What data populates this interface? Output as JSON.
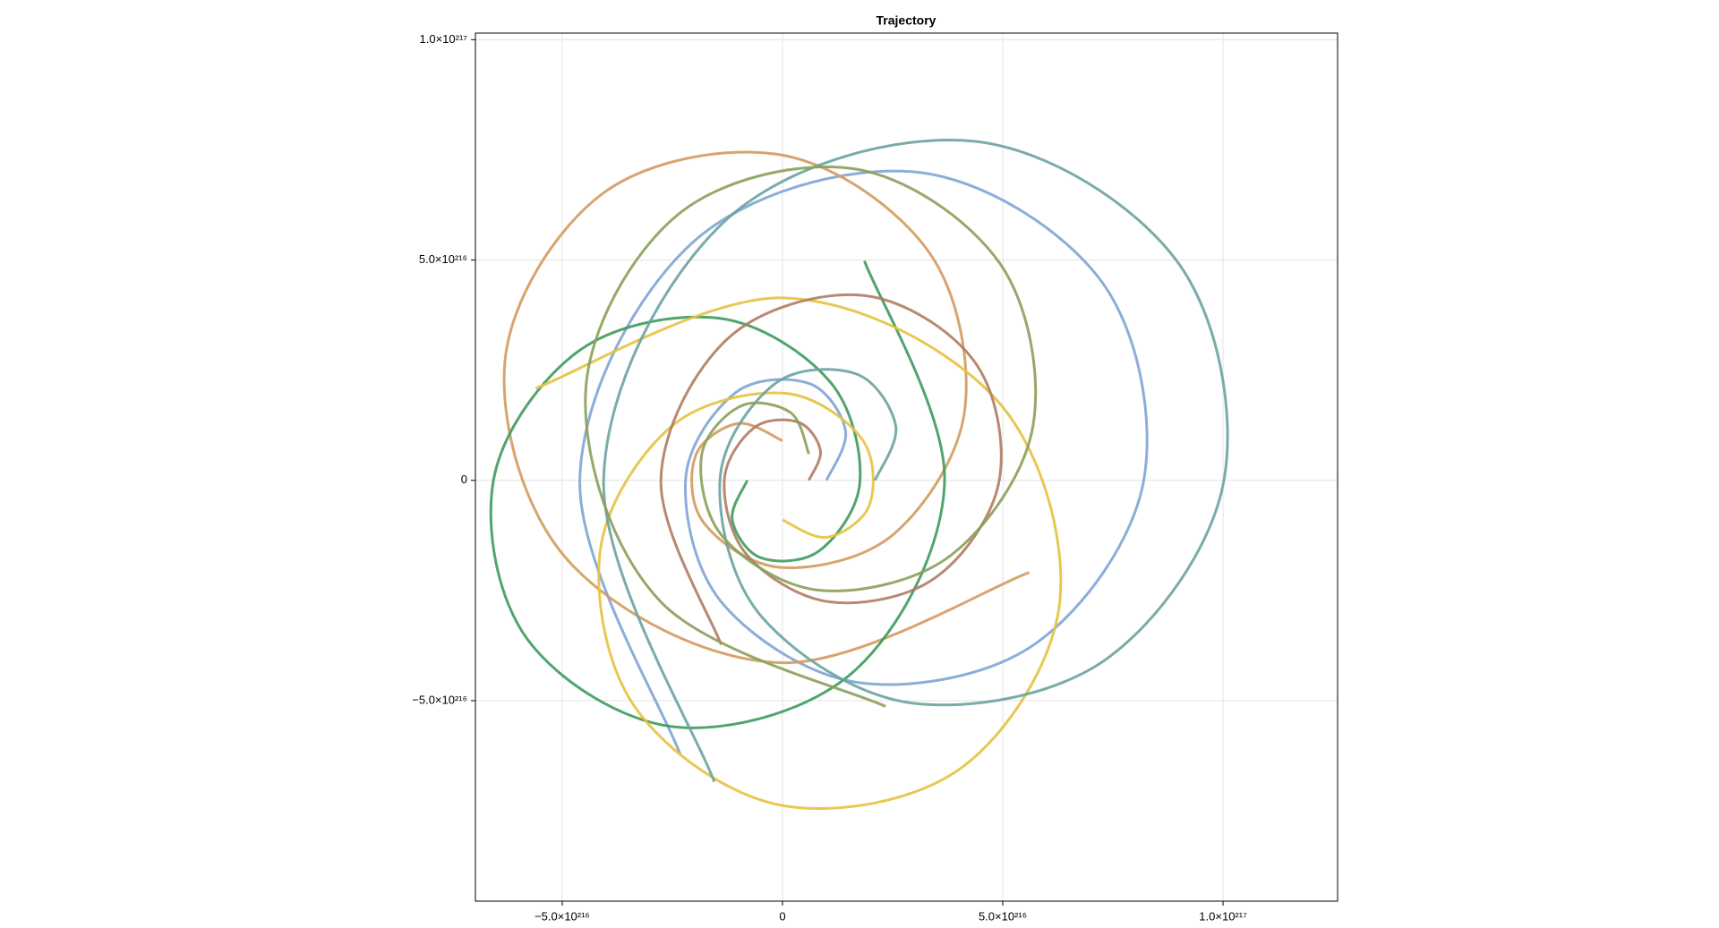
{
  "chart_data": {
    "type": "line",
    "title": "Trajectory",
    "xlim": [
      -6.97e+216,
      1.26e+217
    ],
    "ylim": [
      -9.55e+216,
      1.015e+217
    ],
    "xticks": [
      {
        "value": -5e+216,
        "label": "−5.0×10²¹⁶"
      },
      0,
      {
        "value": 5e+216,
        "label": "5.0×10²¹⁶"
      },
      {
        "value": 1e+217,
        "label": "1.0×10²¹⁷"
      }
    ],
    "yticks": [
      {
        "value": -5e+216,
        "label": "−5.0×10²¹⁶"
      },
      0,
      {
        "value": 5e+216,
        "label": "5.0×10²¹⁶"
      },
      {
        "value": 1e+217,
        "label": "1.0×10²¹⁷"
      }
    ],
    "grid": true,
    "series": [
      {
        "color": "#7fa4d6",
        "x": [
          1e+216,
          1.43e+216,
          6e+215,
          -1.08e+216,
          -2.2e+216,
          -1.33e+216,
          1.8e+216,
          5.78e+216,
          8.2e+216,
          7.23e+216,
          3e+216,
          -2.07e+216,
          -4.6e+216,
          -2.32e+216
        ],
        "values": [
          0,
          1.13e+216,
          2.2e+216,
          1.98e+216,
          0,
          -2.83e+216,
          -4.6e+216,
          -3.68e+216,
          0,
          4.53e+216,
          7e+216,
          5.37e+216,
          0,
          -6.22e+216
        ]
      },
      {
        "color": "#d49a5e",
        "x": [
          0,
          -1.02e+216,
          -1.98e+216,
          -1.78e+216,
          0,
          2.55e+216,
          4.14e+216,
          3.31e+216,
          0,
          -4.08e+216,
          -6.3e+216,
          -4.83e+216,
          0,
          5.6e+216
        ],
        "values": [
          9e+215,
          1.29e+216,
          5.4e+215,
          -9.7e+215,
          -1.98e+216,
          -1.2e+216,
          1.62e+216,
          5.2e+216,
          7.38e+216,
          6.51e+216,
          2.7e+216,
          -1.86e+216,
          -4.14e+216,
          -2.09e+216
        ]
      },
      {
        "color": "#3e9a5e",
        "x": [
          -8e+215,
          -1.14e+216,
          -4.8e+215,
          8.6e+215,
          1.76e+216,
          1.06e+216,
          -1.44e+216,
          -4.62e+216,
          -6.56e+216,
          -5.78e+216,
          -2.4e+216,
          1.66e+216,
          3.68e+216,
          1.86e+216
        ],
        "values": [
          0,
          -9e+215,
          -1.76e+216,
          -1.58e+216,
          0,
          2.26e+216,
          3.68e+216,
          2.94e+216,
          0,
          -3.62e+216,
          -5.6e+216,
          -4.3e+216,
          0,
          4.98e+216
        ]
      },
      {
        "color": "#e5c23f",
        "x": [
          0,
          1.02e+216,
          1.98e+216,
          1.78e+216,
          0,
          -2.55e+216,
          -4.14e+216,
          -3.31e+216,
          0,
          4.08e+216,
          6.3e+216,
          4.83e+216,
          0,
          -5.6e+216
        ],
        "values": [
          -9e+215,
          -1.29e+216,
          -5.4e+215,
          9.7e+215,
          1.98e+216,
          1.2e+216,
          -1.62e+216,
          -5.2e+216,
          -7.38e+216,
          -6.51e+216,
          -2.7e+216,
          1.86e+216,
          4.14e+216,
          2.09e+216
        ]
      },
      {
        "color": "#b07b62",
        "x": [
          6e+215,
          8.6e+215,
          3.6e+215,
          -6.5e+215,
          -1.32e+216,
          -8e+215,
          1.08e+216,
          3.47e+216,
          4.92e+216,
          4.34e+216,
          1.8e+216,
          -1.24e+216,
          -2.76e+216,
          -1.39e+216
        ],
        "values": [
          0,
          6.8e+215,
          1.32e+216,
          1.19e+216,
          0,
          -1.7e+216,
          -2.76e+216,
          -2.21e+216,
          0,
          2.72e+216,
          4.2e+216,
          3.22e+216,
          0,
          -3.73e+216
        ]
      },
      {
        "color": "#6aa3a0",
        "x": [
          2.1e+216,
          2.57e+216,
          1.66e+216,
          -1.9e+215,
          -1.42e+216,
          -4.6e+215,
          2.98e+216,
          7.36e+216,
          1.002e+217,
          8.95e+216,
          4.3e+216,
          -1.28e+216,
          -4.06e+216,
          -1.55e+216
        ],
        "values": [
          0,
          1.24e+216,
          2.42e+216,
          2.18e+216,
          0,
          -3.11e+216,
          -5.06e+216,
          -4.05e+216,
          0,
          4.98e+216,
          7.7e+216,
          5.91e+216,
          0,
          -6.84e+216
        ]
      },
      {
        "color": "#8aa05a",
        "x": [
          6e+215,
          1.8e+215,
          -9.6e+215,
          -1.84e+216,
          -1.32e+216,
          9e+215,
          3.85e+216,
          5.69e+216,
          4.93e+216,
          1.62e+216,
          -2.4e+216,
          -4.47e+216,
          -2.76e+216,
          2.34e+216
        ],
        "values": [
          6e+215,
          1.54e+216,
          1.68e+216,
          5.4e+215,
          -1.32e+216,
          -2.5e+216,
          -1.68e+216,
          1.26e+216,
          4.93e+216,
          7.07e+216,
          6.01e+216,
          1.98e+216,
          -2.76e+216,
          -5.13e+216
        ]
      }
    ]
  }
}
